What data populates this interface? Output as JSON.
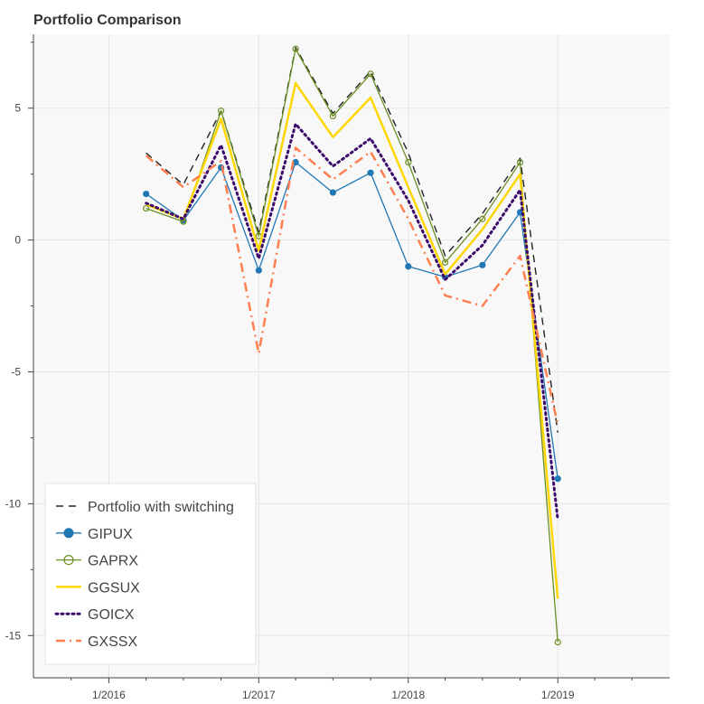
{
  "chart_data": {
    "type": "line",
    "title": "Portfolio Comparison",
    "xlabel": "",
    "ylabel": "",
    "x": [
      "2016-04-01",
      "2016-07-01",
      "2016-10-01",
      "2017-01-01",
      "2017-04-01",
      "2017-07-01",
      "2017-10-01",
      "2018-01-01",
      "2018-04-01",
      "2018-07-01",
      "2018-10-01",
      "2019-01-01"
    ],
    "x_tick_labels": [
      "1/2016",
      "1/2017",
      "1/2018",
      "1/2019"
    ],
    "x_tick_values": [
      "2016-01-01",
      "2017-01-01",
      "2018-01-01",
      "2019-01-01"
    ],
    "xlim": [
      "2015-07-01",
      "2019-10-01"
    ],
    "y_tick_labels": [
      "5",
      "0",
      "-5",
      "-10",
      "-15"
    ],
    "y_tick_values": [
      5,
      0,
      -5,
      -10,
      -15
    ],
    "ylim": [
      -16.6,
      7.8
    ],
    "grid": true,
    "legend_position": "bottom-left",
    "series": [
      {
        "name": "Portfolio with switching",
        "color": "#222222",
        "style": "dashed",
        "marker": "none",
        "values": [
          3.3,
          2.1,
          4.9,
          0.3,
          7.3,
          4.8,
          6.4,
          3.3,
          -0.6,
          1.0,
          3.1,
          -7.3
        ]
      },
      {
        "name": "GIPUX",
        "color": "#1f77b4",
        "style": "solid",
        "marker": "filled-circle",
        "values": [
          1.75,
          0.75,
          2.75,
          -1.15,
          2.95,
          1.8,
          2.55,
          -1.0,
          -1.4,
          -0.95,
          1.05,
          -9.05
        ]
      },
      {
        "name": "GAPRX",
        "color": "#6b8e23",
        "style": "solid",
        "marker": "open-circle",
        "values": [
          1.2,
          0.7,
          4.9,
          0.15,
          7.25,
          4.7,
          6.3,
          2.95,
          -0.85,
          0.8,
          2.95,
          -15.25
        ]
      },
      {
        "name": "GGSUX",
        "color": "#ffd700",
        "style": "solid",
        "marker": "none",
        "values": [
          1.35,
          0.8,
          4.6,
          -0.4,
          5.95,
          3.9,
          5.4,
          2.0,
          -1.3,
          0.4,
          2.5,
          -13.6
        ]
      },
      {
        "name": "GOICX",
        "color": "#3b0a6b",
        "style": "dotted",
        "marker": "none",
        "values": [
          1.4,
          0.8,
          3.6,
          -0.7,
          4.4,
          2.8,
          3.85,
          1.5,
          -1.5,
          -0.2,
          1.9,
          -10.6
        ]
      },
      {
        "name": "GXSSX",
        "color": "#ff7f50",
        "style": "dashdot",
        "marker": "none",
        "values": [
          3.2,
          2.0,
          3.0,
          -4.3,
          3.5,
          2.3,
          3.35,
          0.8,
          -2.1,
          -2.5,
          -0.6,
          -7.0
        ]
      }
    ]
  }
}
